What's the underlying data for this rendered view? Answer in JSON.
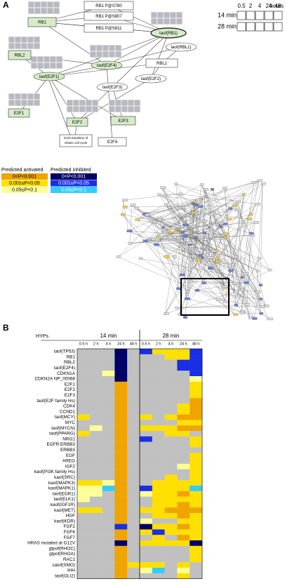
{
  "panel_a": {
    "label": "A",
    "time_legend": {
      "times": [
        "0.5",
        "2",
        "4",
        "24",
        "48"
      ],
      "unit": "hours",
      "rows": [
        "14 min",
        "28 min"
      ]
    },
    "nodes": [
      "RB1",
      "RBL2",
      "E2F1",
      "E2F2",
      "E2F3",
      "E2F4",
      "RBL1",
      "taof(RB1)",
      "taof(RBL1)",
      "taof(E2F4)",
      "taof(E2F1)",
      "taof(E2F3)",
      "taof(E2F2)",
      "RB1 P@S780",
      "RB1 P@S807",
      "RB1 P@S811"
    ],
    "process": [
      "G1/S transition of",
      "mitotic cell cycle"
    ]
  },
  "legend": {
    "activated": {
      "title": "Predicted activated",
      "items": [
        {
          "label": "0<P<0.001",
          "color": "#f0a400"
        },
        {
          "label": "0.001≤P<0.05",
          "color": "#ffe000"
        },
        {
          "label": "0.05≤P<0.1",
          "color": "#ffff99"
        }
      ]
    },
    "inhibited": {
      "title": "Predicted inhibited",
      "items": [
        {
          "label": "0<P<0.001",
          "color": "#000066"
        },
        {
          "label": "0.001≤P<0.05",
          "color": "#1a2ee6"
        },
        {
          "label": "0.05≤P<0.1",
          "color": "#33ccff"
        }
      ]
    }
  },
  "heatmap": {
    "label": "B",
    "row_header": "HYPs",
    "groups": [
      "14 min",
      "28 min"
    ],
    "columns": [
      "0.5 h",
      "2 h",
      "4 h",
      "24 h",
      "48 h"
    ],
    "rows": [
      "taof(TP53)",
      "RB1",
      "RBL2",
      "taof(E2F4)",
      "CDKN1A",
      "CDKN2A NP_00068",
      "E2F1",
      "E2F2",
      "E2F3",
      "taof(E2F family Hs)",
      "CDK4",
      "CCND1",
      "taof(MCY)",
      "MYC",
      "taof(MYCN)",
      "taof(PPARG)",
      "NRG1",
      "EGFR:ERBB3",
      "ERBB3",
      "EGF",
      "AREG",
      "IGF2",
      "kaof(PI3K family Hs)",
      "kaof(SRC)",
      "kaof(MAPK3)",
      "kaof(MAPK1)",
      "taof(EGR1)",
      "taof(ELK1)",
      "kaof(IGF1R)",
      "kaof(MET)",
      "HGF",
      "kaof(KDR)",
      "FGF2",
      "FGF6",
      "FGF7",
      "HRAS mutated at G12V",
      "gtpof(RHOC)",
      "gtpof(RHOA)",
      "RAC1",
      "catof(SMO)",
      "IHH",
      "taof(GLI2)"
    ],
    "cells": [
      [
        "#c0c0c0",
        "#c0c0c0",
        "#c0c0c0",
        "#000066",
        "#c0c0c0",
        "#1a2ee6",
        "#ffe000",
        "#ffe000",
        "#ffe000",
        "#1a2ee6"
      ],
      [
        "#c0c0c0",
        "#c0c0c0",
        "#c0c0c0",
        "#000066",
        "#c0c0c0",
        "#c0c0c0",
        "#c0c0c0",
        "#ffe000",
        "#ffe000",
        "#1a2ee6"
      ],
      [
        "#c0c0c0",
        "#c0c0c0",
        "#c0c0c0",
        "#000066",
        "#c0c0c0",
        "#c0c0c0",
        "#c0c0c0",
        "#c0c0c0",
        "#1a2ee6",
        "#1a2ee6"
      ],
      [
        "#c0c0c0",
        "#c0c0c0",
        "#c0c0c0",
        "#000066",
        "#c0c0c0",
        "#c0c0c0",
        "#c0c0c0",
        "#c0c0c0",
        "#1a2ee6",
        "#1a2ee6"
      ],
      [
        "#c0c0c0",
        "#c0c0c0",
        "#ffff99",
        "#000066",
        "#c0c0c0",
        "#c0c0c0",
        "#c0c0c0",
        "#c0c0c0",
        "#c0c0c0",
        "#1a2ee6"
      ],
      [
        "#c0c0c0",
        "#c0c0c0",
        "#c0c0c0",
        "#000066",
        "#c0c0c0",
        "#c0c0c0",
        "#c0c0c0",
        "#c0c0c0",
        "#c0c0c0",
        "#ffff99"
      ],
      [
        "#c0c0c0",
        "#c0c0c0",
        "#c0c0c0",
        "#f0a400",
        "#c0c0c0",
        "#c0c0c0",
        "#c0c0c0",
        "#c0c0c0",
        "#c0c0c0",
        "#ffe000"
      ],
      [
        "#c0c0c0",
        "#c0c0c0",
        "#c0c0c0",
        "#f0a400",
        "#c0c0c0",
        "#c0c0c0",
        "#c0c0c0",
        "#c0c0c0",
        "#c0c0c0",
        "#ffe000"
      ],
      [
        "#c0c0c0",
        "#c0c0c0",
        "#c0c0c0",
        "#f0a400",
        "#c0c0c0",
        "#c0c0c0",
        "#c0c0c0",
        "#c0c0c0",
        "#c0c0c0",
        "#ffe000"
      ],
      [
        "#c0c0c0",
        "#c0c0c0",
        "#c0c0c0",
        "#f0a400",
        "#c0c0c0",
        "#c0c0c0",
        "#c0c0c0",
        "#c0c0c0",
        "#c0c0c0",
        "#f0a400"
      ],
      [
        "#c0c0c0",
        "#c0c0c0",
        "#c0c0c0",
        "#f0a400",
        "#c0c0c0",
        "#c0c0c0",
        "#c0c0c0",
        "#c0c0c0",
        "#ffe000",
        "#f0a400"
      ],
      [
        "#c0c0c0",
        "#c0c0c0",
        "#c0c0c0",
        "#f0a400",
        "#c0c0c0",
        "#c0c0c0",
        "#c0c0c0",
        "#c0c0c0",
        "#ffe000",
        "#f0a400"
      ],
      [
        "#ffe000",
        "#c0c0c0",
        "#c0c0c0",
        "#f0a400",
        "#c0c0c0",
        "#ffe000",
        "#c0c0c0",
        "#ffe000",
        "#f0a400",
        "#f0a400"
      ],
      [
        "#c0c0c0",
        "#c0c0c0",
        "#c0c0c0",
        "#f0a400",
        "#c0c0c0",
        "#c0c0c0",
        "#c0c0c0",
        "#c0c0c0",
        "#ffe000",
        "#ffe000"
      ],
      [
        "#c0c0c0",
        "#ffff99",
        "#c0c0c0",
        "#f0a400",
        "#c0c0c0",
        "#ffe000",
        "#ffe000",
        "#ffe000",
        "#f0a400",
        "#f0a400"
      ],
      [
        "#ffe000",
        "#c0c0c0",
        "#c0c0c0",
        "#f0a400",
        "#c0c0c0",
        "#c0c0c0",
        "#c0c0c0",
        "#ffe000",
        "#ffe000",
        "#c0c0c0"
      ],
      [
        "#c0c0c0",
        "#c0c0c0",
        "#c0c0c0",
        "#f0a400",
        "#c0c0c0",
        "#1a2ee6",
        "#c0c0c0",
        "#c0c0c0",
        "#c0c0c0",
        "#ffe000"
      ],
      [
        "#c0c0c0",
        "#c0c0c0",
        "#c0c0c0",
        "#f0a400",
        "#c0c0c0",
        "#c0c0c0",
        "#c0c0c0",
        "#c0c0c0",
        "#c0c0c0",
        "#ffe000"
      ],
      [
        "#c0c0c0",
        "#c0c0c0",
        "#c0c0c0",
        "#f0a400",
        "#c0c0c0",
        "#c0c0c0",
        "#c0c0c0",
        "#c0c0c0",
        "#c0c0c0",
        "#c0c0c0"
      ],
      [
        "#c0c0c0",
        "#c0c0c0",
        "#c0c0c0",
        "#f0a400",
        "#c0c0c0",
        "#c0c0c0",
        "#c0c0c0",
        "#c0c0c0",
        "#c0c0c0",
        "#ffe000"
      ],
      [
        "#c0c0c0",
        "#c0c0c0",
        "#c0c0c0",
        "#f0a400",
        "#c0c0c0",
        "#c0c0c0",
        "#c0c0c0",
        "#c0c0c0",
        "#c0c0c0",
        "#ffe000"
      ],
      [
        "#c0c0c0",
        "#c0c0c0",
        "#c0c0c0",
        "#f0a400",
        "#c0c0c0",
        "#c0c0c0",
        "#c0c0c0",
        "#c0c0c0",
        "#ffff99",
        "#ffe000"
      ],
      [
        "#c0c0c0",
        "#c0c0c0",
        "#c0c0c0",
        "#f0a400",
        "#c0c0c0",
        "#c0c0c0",
        "#c0c0c0",
        "#c0c0c0",
        "#c0c0c0",
        "#ffe000"
      ],
      [
        "#c0c0c0",
        "#c0c0c0",
        "#c0c0c0",
        "#f0a400",
        "#c0c0c0",
        "#c0c0c0",
        "#c0c0c0",
        "#ffe000",
        "#c0c0c0",
        "#ffe000"
      ],
      [
        "#ffe000",
        "#ffe000",
        "#ffff99",
        "#f0a400",
        "#c0c0c0",
        "#c0c0c0",
        "#ffe000",
        "#ffe000",
        "#ffe000",
        "#ffe000"
      ],
      [
        "#ffff99",
        "#ffff99",
        "#33ccff",
        "#f0a400",
        "#c0c0c0",
        "#1a2ee6",
        "#ffe000",
        "#ffe000",
        "#ffe000",
        "#33ccff"
      ],
      [
        "#ffff99",
        "#ffff99",
        "#c0c0c0",
        "#f0a400",
        "#c0c0c0",
        "#ffff99",
        "#ffe000",
        "#ffe000",
        "#f0a400",
        "#ffe000"
      ],
      [
        "#ffff99",
        "#c0c0c0",
        "#c0c0c0",
        "#f0a400",
        "#c0c0c0",
        "#c0c0c0",
        "#ffe000",
        "#ffe000",
        "#ffe000",
        "#ffe000"
      ],
      [
        "#c0c0c0",
        "#c0c0c0",
        "#c0c0c0",
        "#f0a400",
        "#c0c0c0",
        "#c0c0c0",
        "#ffe000",
        "#ffe000",
        "#f0a400",
        "#ffe000"
      ],
      [
        "#ffe000",
        "#ffe000",
        "#c0c0c0",
        "#f0a400",
        "#c0c0c0",
        "#ffe000",
        "#ffe000",
        "#f0a400",
        "#f0a400",
        "#f0a400"
      ],
      [
        "#c0c0c0",
        "#c0c0c0",
        "#c0c0c0",
        "#f0a400",
        "#c0c0c0",
        "#c0c0c0",
        "#ffe000",
        "#ffe000",
        "#f0a400",
        "#ffe000"
      ],
      [
        "#c0c0c0",
        "#c0c0c0",
        "#c0c0c0",
        "#f0a400",
        "#c0c0c0",
        "#ffff99",
        "#c0c0c0",
        "#c0c0c0",
        "#ffe000",
        "#ffe000"
      ],
      [
        "#c0c0c0",
        "#c0c0c0",
        "#c0c0c0",
        "#1a2ee6",
        "#c0c0c0",
        "#000066",
        "#ffe000",
        "#ffe000",
        "#f0a400",
        "#ffe000"
      ],
      [
        "#c0c0c0",
        "#c0c0c0",
        "#c0c0c0",
        "#f0a400",
        "#c0c0c0",
        "#ffe000",
        "#1a2ee6",
        "#ffe000",
        "#ffe000",
        "#ffe000"
      ],
      [
        "#c0c0c0",
        "#c0c0c0",
        "#c0c0c0",
        "#f0a400",
        "#c0c0c0",
        "#c0c0c0",
        "#ffe000",
        "#c0c0c0",
        "#f0a400",
        "#ffe000"
      ],
      [
        "#c0c0c0",
        "#c0c0c0",
        "#c0c0c0",
        "#000066",
        "#c0c0c0",
        "#ffe000",
        "#ffe000",
        "#ffe000",
        "#ffe000",
        "#000066"
      ],
      [
        "#c0c0c0",
        "#c0c0c0",
        "#c0c0c0",
        "#f0a400",
        "#c0c0c0",
        "#c0c0c0",
        "#c0c0c0",
        "#c0c0c0",
        "#c0c0c0",
        "#ffe000"
      ],
      [
        "#c0c0c0",
        "#c0c0c0",
        "#c0c0c0",
        "#f0a400",
        "#c0c0c0",
        "#c0c0c0",
        "#c0c0c0",
        "#c0c0c0",
        "#c0c0c0",
        "#ffe000"
      ],
      [
        "#c0c0c0",
        "#c0c0c0",
        "#c0c0c0",
        "#f0a400",
        "#c0c0c0",
        "#c0c0c0",
        "#c0c0c0",
        "#c0c0c0",
        "#c0c0c0",
        "#ffe000"
      ],
      [
        "#c0c0c0",
        "#c0c0c0",
        "#c0c0c0",
        "#f0a400",
        "#ffe000",
        "#ffe000",
        "#ffe000",
        "#c0c0c0",
        "#ffe000",
        "#c0c0c0"
      ],
      [
        "#c0c0c0",
        "#c0c0c0",
        "#c0c0c0",
        "#f0a400",
        "#c0c0c0",
        "#ffff99",
        "#33ccff",
        "#c0c0c0",
        "#ffff99",
        "#c0c0c0"
      ],
      [
        "#c0c0c0",
        "#c0c0c0",
        "#c0c0c0",
        "#f0a400",
        "#c0c0c0",
        "#c0c0c0",
        "#c0c0c0",
        "#c0c0c0",
        "#ffe000",
        "#c0c0c0"
      ]
    ]
  }
}
